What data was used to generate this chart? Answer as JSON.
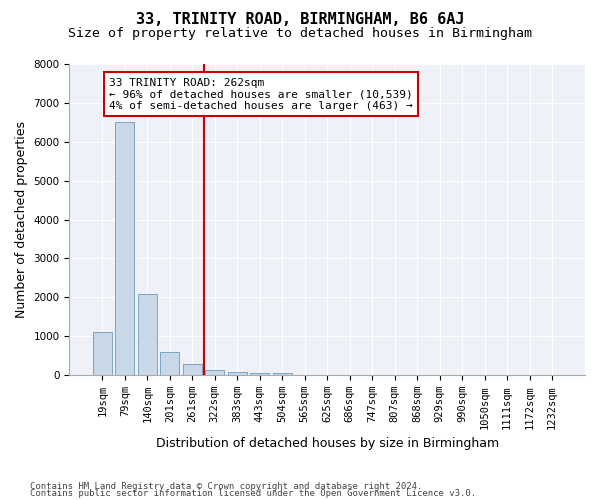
{
  "title": "33, TRINITY ROAD, BIRMINGHAM, B6 6AJ",
  "subtitle": "Size of property relative to detached houses in Birmingham",
  "xlabel": "Distribution of detached houses by size in Birmingham",
  "ylabel": "Number of detached properties",
  "property_label": "33 TRINITY ROAD: 262sqm",
  "annotation_line1": "← 96% of detached houses are smaller (10,539)",
  "annotation_line2": "4% of semi-detached houses are larger (463) →",
  "footer_line1": "Contains HM Land Registry data © Crown copyright and database right 2024.",
  "footer_line2": "Contains public sector information licensed under the Open Government Licence v3.0.",
  "bar_color": "#c8d8e8",
  "bar_edge_color": "#5a8ab0",
  "vline_color": "#cc0000",
  "annotation_box_color": "#cc0000",
  "background_color": "#eef2f8",
  "grid_color": "#ffffff",
  "categories": [
    "19sqm",
    "79sqm",
    "140sqm",
    "201sqm",
    "261sqm",
    "322sqm",
    "383sqm",
    "443sqm",
    "504sqm",
    "565sqm",
    "625sqm",
    "686sqm",
    "747sqm",
    "807sqm",
    "868sqm",
    "929sqm",
    "990sqm",
    "1050sqm",
    "1111sqm",
    "1172sqm",
    "1232sqm"
  ],
  "values": [
    1100,
    6500,
    2100,
    600,
    300,
    130,
    90,
    60,
    50,
    5,
    0,
    0,
    0,
    0,
    0,
    0,
    0,
    0,
    0,
    0,
    0
  ],
  "ylim": [
    0,
    8000
  ],
  "yticks": [
    0,
    1000,
    2000,
    3000,
    4000,
    5000,
    6000,
    7000,
    8000
  ],
  "vline_x": 4.5,
  "title_fontsize": 11,
  "subtitle_fontsize": 9.5,
  "axis_fontsize": 9,
  "tick_fontsize": 7.5,
  "annotation_fontsize": 8,
  "footer_fontsize": 6.5
}
